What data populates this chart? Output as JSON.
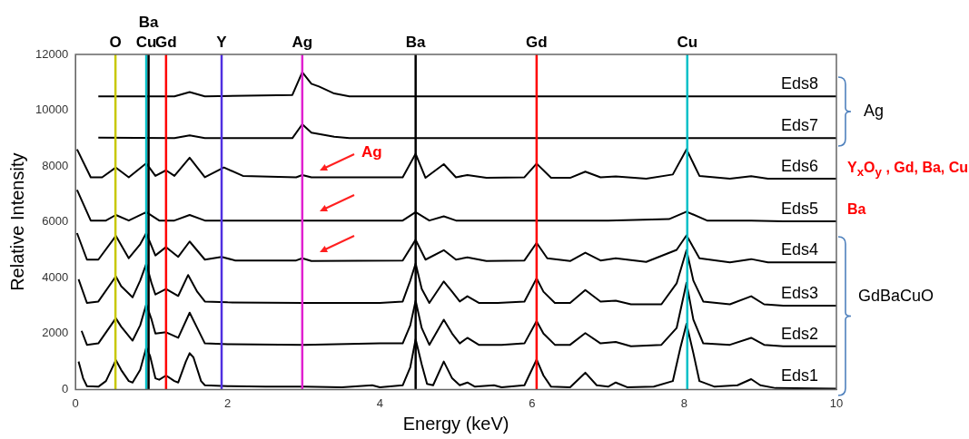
{
  "chart_data": {
    "type": "line",
    "xlabel": "Energy (keV)",
    "ylabel": "Relative Intensity",
    "xlim": [
      0,
      10
    ],
    "xticks": [
      0,
      2,
      4,
      6,
      8,
      10
    ],
    "ylim": [
      0,
      12000
    ],
    "yticks": [
      0,
      2000,
      4000,
      6000,
      8000,
      10000,
      12000
    ],
    "grid": false,
    "legend": false,
    "marker": "none",
    "line_style": "solid",
    "series": [
      {
        "name": "Eds1",
        "color": "#000000",
        "x": [
          0.04,
          0.1,
          0.15,
          0.3,
          0.4,
          0.53,
          0.6,
          0.7,
          0.75,
          0.85,
          0.93,
          0.98,
          1.05,
          1.1,
          1.19,
          1.3,
          1.35,
          1.45,
          1.5,
          1.55,
          1.65,
          1.7,
          2,
          2.5,
          3,
          3.5,
          3.9,
          4,
          4.3,
          4.4,
          4.47,
          4.55,
          4.62,
          4.7,
          4.84,
          4.95,
          5.05,
          5.15,
          5.25,
          5.5,
          5.6,
          5.9,
          6.06,
          6.15,
          6.25,
          6.5,
          6.7,
          6.85,
          7,
          7.1,
          7.25,
          7.6,
          7.85,
          7.95,
          8.03,
          8.12,
          8.2,
          8.4,
          8.7,
          8.88,
          9,
          9.2,
          10
        ],
        "values": [
          1000,
          400,
          120,
          100,
          300,
          1050,
          700,
          300,
          250,
          700,
          1500,
          1200,
          400,
          350,
          500,
          300,
          250,
          1000,
          1300,
          1150,
          300,
          150,
          120,
          100,
          100,
          80,
          150,
          80,
          150,
          800,
          1800,
          900,
          200,
          150,
          1000,
          400,
          150,
          250,
          100,
          150,
          80,
          150,
          1070,
          500,
          100,
          80,
          600,
          150,
          100,
          250,
          80,
          100,
          300,
          1500,
          2350,
          1300,
          300,
          100,
          150,
          370,
          150,
          50,
          30
        ]
      },
      {
        "name": "Eds2",
        "color": "#000000",
        "x": [
          0.08,
          0.15,
          0.3,
          0.53,
          0.6,
          0.75,
          0.85,
          0.93,
          1.0,
          1.05,
          1.19,
          1.35,
          1.5,
          1.6,
          1.7,
          2,
          3,
          4,
          4.3,
          4.4,
          4.47,
          4.55,
          4.65,
          4.84,
          4.95,
          5.05,
          5.15,
          5.3,
          5.6,
          5.9,
          6.06,
          6.15,
          6.3,
          6.5,
          6.7,
          6.9,
          7.1,
          7.3,
          7.7,
          7.9,
          8.03,
          8.12,
          8.25,
          8.6,
          8.88,
          9.05,
          9.3,
          10
        ],
        "values": [
          2100,
          1600,
          1650,
          2550,
          2250,
          1750,
          2300,
          3050,
          2500,
          2000,
          2050,
          1850,
          2750,
          2200,
          1650,
          1620,
          1600,
          1650,
          1650,
          2300,
          3180,
          2200,
          1600,
          2500,
          2000,
          1650,
          1850,
          1600,
          1600,
          1650,
          2450,
          2000,
          1600,
          1600,
          2020,
          1650,
          1700,
          1550,
          1600,
          2200,
          3820,
          2500,
          1650,
          1600,
          1850,
          1600,
          1550,
          1550
        ]
      },
      {
        "name": "Eds3",
        "color": "#000000",
        "x": [
          0.04,
          0.15,
          0.3,
          0.53,
          0.6,
          0.75,
          0.85,
          0.93,
          1.0,
          1.05,
          1.19,
          1.35,
          1.48,
          1.6,
          1.7,
          2,
          3,
          4,
          4.3,
          4.4,
          4.47,
          4.55,
          4.65,
          4.84,
          4.95,
          5.05,
          5.15,
          5.3,
          5.55,
          5.9,
          6.06,
          6.15,
          6.3,
          6.5,
          6.7,
          6.9,
          7.1,
          7.3,
          7.7,
          7.9,
          8.03,
          8.12,
          8.25,
          8.6,
          8.88,
          9.05,
          9.3,
          10
        ],
        "values": [
          3950,
          3100,
          3150,
          4050,
          3700,
          3300,
          3900,
          4500,
          3800,
          3400,
          3600,
          3350,
          4100,
          3500,
          3150,
          3120,
          3100,
          3100,
          3150,
          3900,
          4510,
          3600,
          3100,
          3870,
          3500,
          3150,
          3340,
          3100,
          3100,
          3150,
          3980,
          3500,
          3100,
          3100,
          3560,
          3150,
          3180,
          3050,
          3050,
          3800,
          4990,
          3900,
          3150,
          3050,
          3340,
          3050,
          3000,
          3000
        ]
      },
      {
        "name": "Eds4",
        "color": "#000000",
        "x": [
          0.02,
          0.15,
          0.3,
          0.53,
          0.7,
          0.85,
          0.93,
          1.05,
          1.19,
          1.35,
          1.5,
          1.7,
          1.92,
          2.1,
          2.9,
          2.98,
          3.1,
          4.3,
          4.47,
          4.6,
          4.84,
          5.0,
          5.15,
          5.4,
          5.9,
          6.06,
          6.2,
          6.5,
          6.7,
          6.9,
          7.1,
          7.5,
          7.9,
          8.03,
          8.2,
          8.6,
          8.88,
          9.1,
          10
        ],
        "values": [
          5600,
          4650,
          4650,
          5500,
          4700,
          5200,
          5600,
          4800,
          5100,
          4750,
          5300,
          4650,
          4750,
          4620,
          4620,
          4700,
          4600,
          4620,
          5360,
          4650,
          4990,
          4650,
          4730,
          4600,
          4620,
          5250,
          4700,
          4600,
          4900,
          4620,
          4700,
          4570,
          5000,
          5520,
          4700,
          4550,
          4670,
          4550,
          4550
        ]
      },
      {
        "name": "Eds5",
        "color": "#000000",
        "x": [
          0.02,
          0.2,
          0.4,
          0.53,
          0.7,
          0.93,
          1.1,
          1.3,
          1.5,
          1.7,
          2,
          3,
          4.3,
          4.47,
          4.65,
          4.84,
          5.0,
          6.06,
          7,
          7.8,
          8.03,
          8.3,
          8.88,
          9.3,
          10
        ],
        "values": [
          7150,
          6050,
          6050,
          6250,
          6050,
          6350,
          6050,
          6050,
          6250,
          6050,
          6050,
          6050,
          6050,
          6350,
          6050,
          6200,
          6050,
          6050,
          6050,
          6100,
          6370,
          6050,
          6050,
          6020,
          6020
        ]
      },
      {
        "name": "Eds6",
        "color": "#000000",
        "x": [
          0.02,
          0.2,
          0.35,
          0.53,
          0.7,
          0.93,
          1.05,
          1.19,
          1.3,
          1.5,
          1.7,
          1.95,
          2.2,
          2.9,
          2.98,
          3.1,
          4.3,
          4.47,
          4.6,
          4.84,
          5.0,
          5.15,
          5.4,
          5.9,
          6.06,
          6.25,
          6.5,
          6.7,
          6.9,
          7.1,
          7.5,
          7.85,
          8.03,
          8.2,
          8.6,
          8.88,
          9.1,
          10
        ],
        "values": [
          8600,
          7600,
          7600,
          7950,
          7600,
          8100,
          7650,
          7850,
          7650,
          8300,
          7600,
          7950,
          7650,
          7600,
          7680,
          7600,
          7600,
          8440,
          7580,
          8070,
          7600,
          7680,
          7580,
          7600,
          8090,
          7580,
          7580,
          7800,
          7600,
          7630,
          7550,
          7700,
          8600,
          7650,
          7550,
          7640,
          7550,
          7550
        ]
      },
      {
        "name": "Eds7",
        "color": "#000000",
        "x": [
          0.3,
          1.3,
          1.5,
          1.7,
          2.85,
          2.98,
          3.1,
          3.2,
          3.4,
          3.6,
          10
        ],
        "values": [
          9020,
          9000,
          9100,
          9000,
          9000,
          9500,
          9200,
          9150,
          9050,
          9000,
          9000
        ]
      },
      {
        "name": "Eds8",
        "color": "#000000",
        "x": [
          0.3,
          1.3,
          1.5,
          1.7,
          2.85,
          2.98,
          3.1,
          3.2,
          3.4,
          3.6,
          10
        ],
        "values": [
          10500,
          10500,
          10650,
          10500,
          10550,
          11360,
          10950,
          10850,
          10600,
          10500,
          10500
        ]
      }
    ],
    "ref_lines": [
      {
        "axis": "x",
        "value": 0.525,
        "label": "O",
        "color": "#c8c800"
      },
      {
        "axis": "x",
        "value": 0.93,
        "label": "Cu",
        "color": "#00c0c8"
      },
      {
        "axis": "x",
        "value": 0.96,
        "label": "Ba",
        "color": "#000000"
      },
      {
        "axis": "x",
        "value": 1.19,
        "label": "Gd",
        "color": "#ff0000"
      },
      {
        "axis": "x",
        "value": 1.92,
        "label": "Y",
        "color": "#5030e0"
      },
      {
        "axis": "x",
        "value": 2.98,
        "label": "Ag",
        "color": "#e020d0"
      },
      {
        "axis": "x",
        "value": 4.47,
        "label": "Ba",
        "color": "#000000"
      },
      {
        "axis": "x",
        "value": 6.06,
        "label": "Gd",
        "color": "#ff0000"
      },
      {
        "axis": "x",
        "value": 8.04,
        "label": "Cu",
        "color": "#00c0c8"
      }
    ],
    "annotations": [
      "Ag",
      "Y$_{x}$O$_{y}$ , Gd, Ba, Cu",
      "Ba",
      "Ag",
      "GdBaCuO"
    ]
  }
}
